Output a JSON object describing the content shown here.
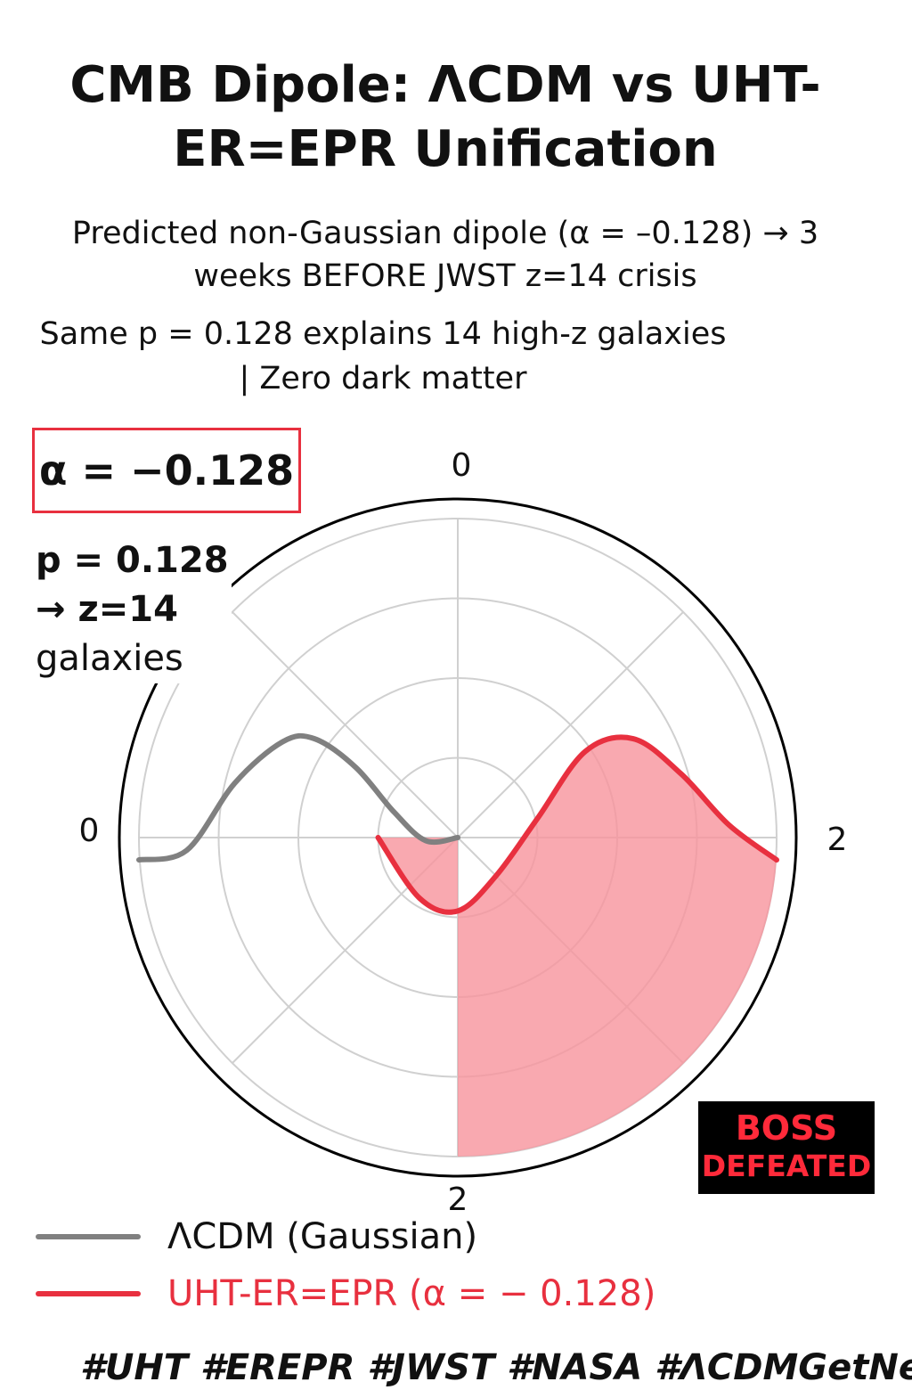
{
  "title_lines": [
    "CMB Dipole: ΛCDM vs UHT-",
    "ER=EPR Unification"
  ],
  "subtitle_lines": [
    "Predicted non-Gaussian dipole (α = –0.128) → 3",
    "weeks BEFORE JWST z=14 crisis"
  ],
  "note_lines": [
    "Same p = 0.128 explains 14 high-z galaxies",
    "| Zero dark matter"
  ],
  "alpha_box": "α = −0.128",
  "p_note": [
    "p = 0.128",
    "→ z=14",
    "galaxies"
  ],
  "badge": [
    "BOSS",
    "DEFEATED"
  ],
  "hashtags": "#UHT #EREPR #JWST #NASA #ΛCDMGetNerfed",
  "colors": {
    "lcdm": "#808080",
    "uht": "#e8303f",
    "uht_fill": "#f7949c",
    "badge_bg": "#000000",
    "badge_text": "#ff2a3a",
    "grid": "#d0d0d0"
  },
  "chart_data": {
    "type": "polar",
    "angular_ticks": [
      "0",
      "2",
      "2",
      "0"
    ],
    "radial_gridlines": 4,
    "angular_gridlines": 8,
    "series": [
      {
        "name": "ΛCDM (Gaussian)",
        "color": "#808080",
        "x": [
          -1.0,
          -0.85,
          -0.7,
          -0.55,
          -0.45,
          -0.32,
          -0.2,
          -0.1,
          0.0
        ],
        "y": [
          -0.07,
          -0.04,
          0.17,
          0.3,
          0.31,
          0.22,
          0.08,
          -0.01,
          0.0
        ]
      },
      {
        "name": "UHT-ER=EPR (α = − 0.128)",
        "color": "#e8303f",
        "x": [
          -0.25,
          -0.12,
          0.0,
          0.12,
          0.25,
          0.4,
          0.55,
          0.7,
          0.85,
          1.0
        ],
        "y": [
          0.0,
          -0.19,
          -0.23,
          -0.12,
          0.06,
          0.27,
          0.31,
          0.2,
          0.04,
          -0.07
        ]
      }
    ]
  }
}
